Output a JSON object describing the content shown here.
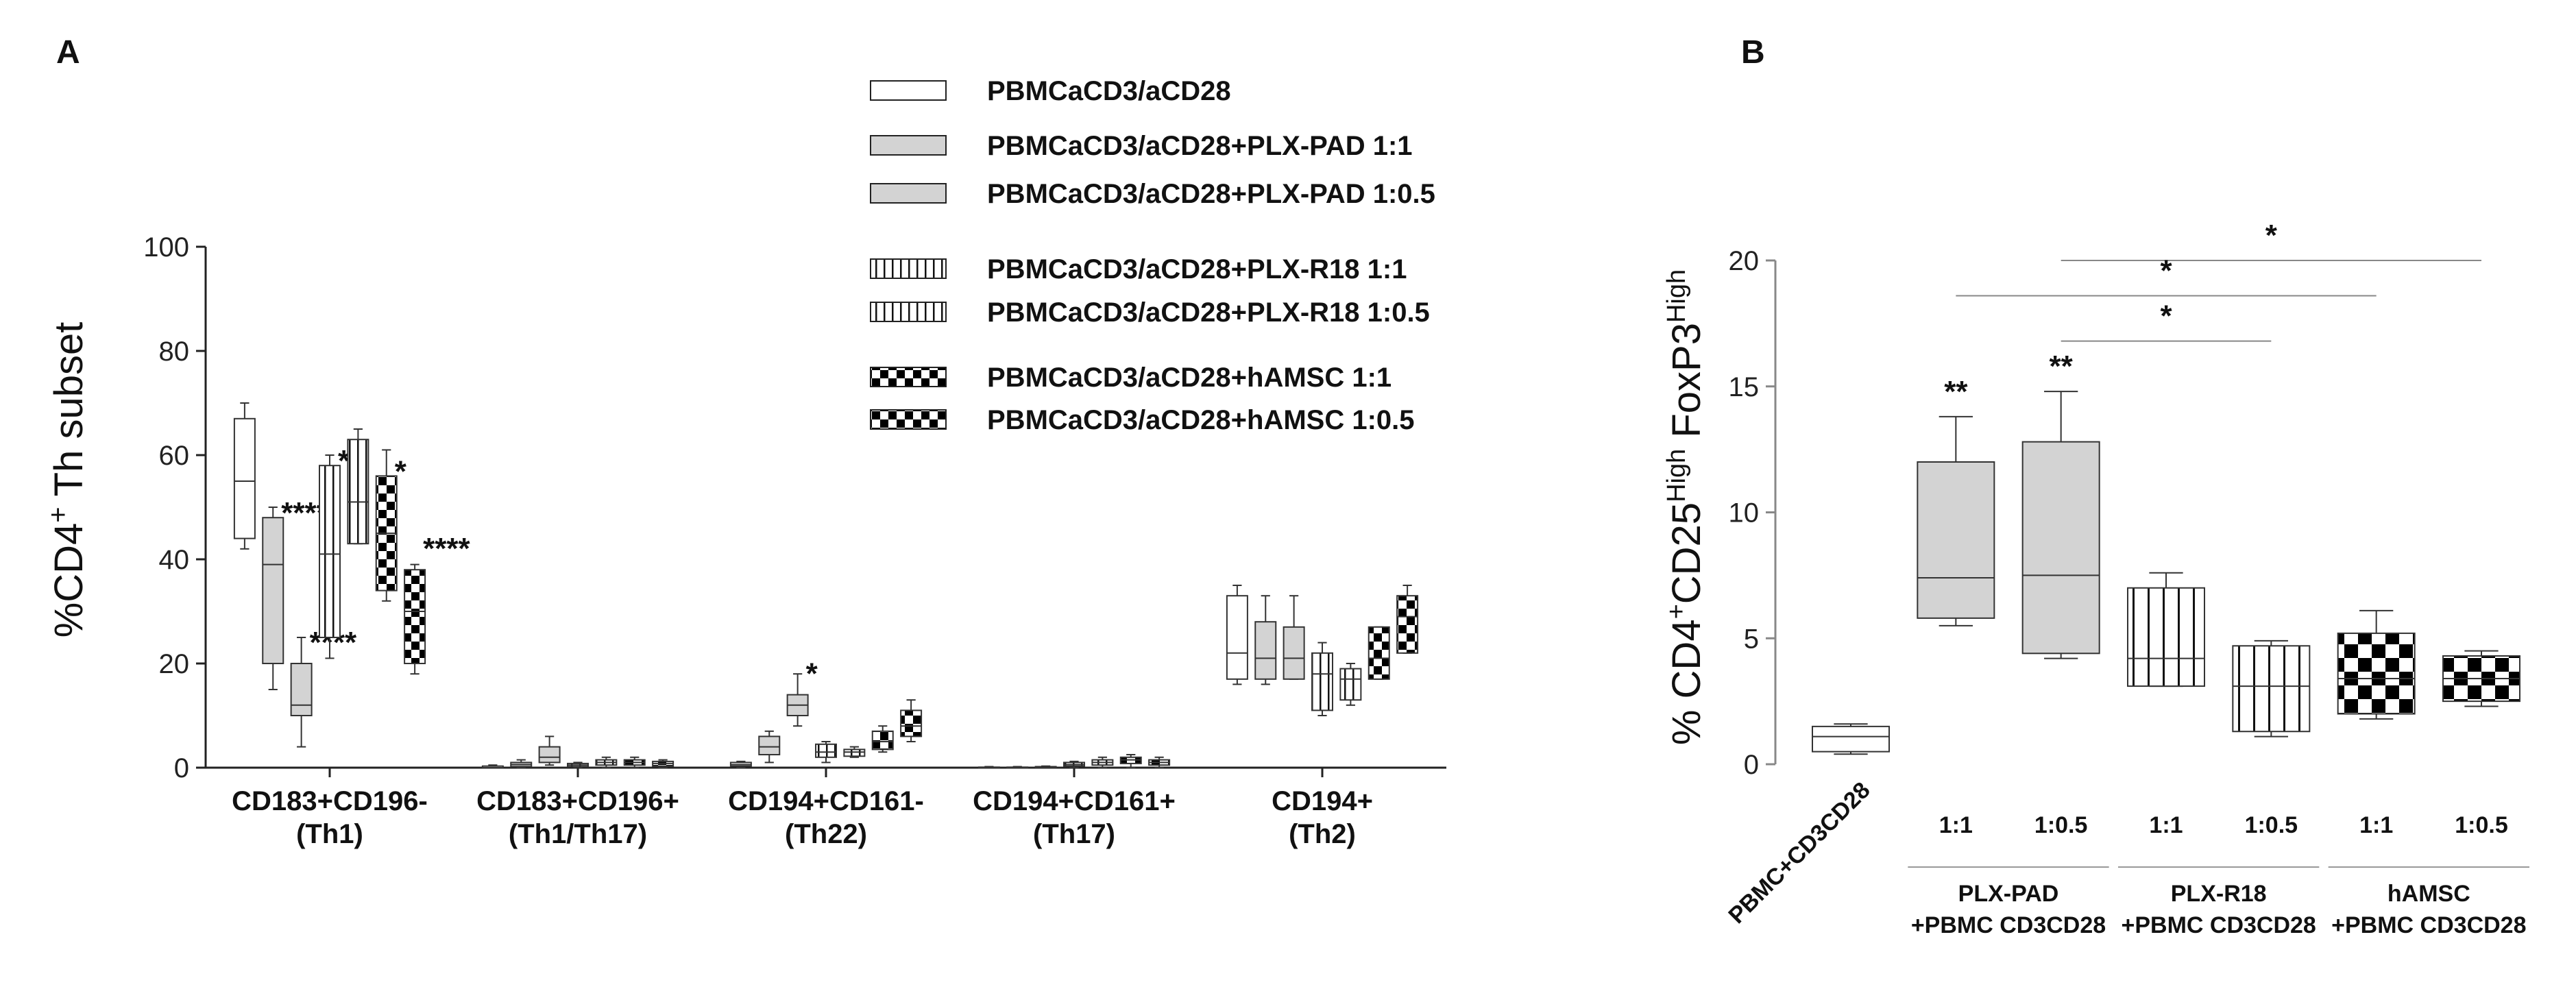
{
  "panels": {
    "a": "A",
    "b": "B"
  },
  "legend": [
    {
      "label": "PBMCaCD3/aCD28",
      "style": "white"
    },
    {
      "label": "PBMCaCD3/aCD28+PLX-PAD 1:1",
      "style": "gray"
    },
    {
      "label": "PBMCaCD3/aCD28+PLX-PAD 1:0.5",
      "style": "gray"
    },
    {
      "label": "PBMCaCD3/aCD28+PLX-R18 1:1",
      "style": "stripes"
    },
    {
      "label": "PBMCaCD3/aCD28+PLX-R18 1:0.5",
      "style": "stripes"
    },
    {
      "label": "PBMCaCD3/aCD28+hAMSC 1:1",
      "style": "checker"
    },
    {
      "label": "PBMCaCD3/aCD28+hAMSC 1:0.5",
      "style": "checker"
    }
  ],
  "colors": {
    "gray": "#d3d3d3",
    "line": "#333333",
    "axis": "#222222",
    "checker_dark": "#000000"
  },
  "chart_data": [
    {
      "type": "box",
      "panel": "A",
      "ylabel_main": "%CD4",
      "ylabel_sup": "+",
      "ylabel_rest": " Th subset",
      "ylim": [
        0,
        100
      ],
      "yticks": [
        0,
        20,
        40,
        60,
        80,
        100
      ],
      "groups": [
        {
          "label1": "CD183+CD196-",
          "label2": "(Th1)"
        },
        {
          "label1": "CD183+CD196+",
          "label2": "(Th1/Th17)"
        },
        {
          "label1": "CD194+CD161-",
          "label2": "(Th22)"
        },
        {
          "label1": "CD194+CD161+",
          "label2": "(Th17)"
        },
        {
          "label1": "CD194+",
          "label2": "(Th2)"
        }
      ],
      "boxes": [
        {
          "group": 0,
          "style": "white",
          "min": 42,
          "q1": 44,
          "median": 55,
          "q3": 67,
          "max": 70,
          "sig": ""
        },
        {
          "group": 0,
          "style": "gray",
          "min": 15,
          "q1": 20,
          "median": 39,
          "q3": 48,
          "max": 50,
          "sig": "****"
        },
        {
          "group": 0,
          "style": "gray",
          "min": 4,
          "q1": 10,
          "median": 12,
          "q3": 20,
          "max": 25,
          "sig": "****"
        },
        {
          "group": 0,
          "style": "stripes",
          "min": 21,
          "q1": 25,
          "median": 41,
          "q3": 58,
          "max": 60,
          "sig": "**"
        },
        {
          "group": 0,
          "style": "stripes",
          "min": 43,
          "q1": 43,
          "median": 51,
          "q3": 63,
          "max": 65,
          "sig": ""
        },
        {
          "group": 0,
          "style": "checker",
          "min": 32,
          "q1": 34,
          "median": 45,
          "q3": 56,
          "max": 61,
          "sig": "*"
        },
        {
          "group": 0,
          "style": "checker",
          "min": 18,
          "q1": 20,
          "median": 30,
          "q3": 38,
          "max": 39,
          "sig": "****"
        },
        {
          "group": 1,
          "style": "white",
          "min": 0,
          "q1": 0,
          "median": 0,
          "q3": 0.3,
          "max": 0.5,
          "sig": ""
        },
        {
          "group": 1,
          "style": "gray",
          "min": 0,
          "q1": 0.2,
          "median": 0.6,
          "q3": 1,
          "max": 1.5,
          "sig": ""
        },
        {
          "group": 1,
          "style": "gray",
          "min": 0.5,
          "q1": 1,
          "median": 2,
          "q3": 4,
          "max": 6,
          "sig": ""
        },
        {
          "group": 1,
          "style": "stripes",
          "min": 0,
          "q1": 0.2,
          "median": 0.5,
          "q3": 0.8,
          "max": 1,
          "sig": ""
        },
        {
          "group": 1,
          "style": "stripes",
          "min": 0,
          "q1": 0.5,
          "median": 1,
          "q3": 1.5,
          "max": 2,
          "sig": ""
        },
        {
          "group": 1,
          "style": "checker",
          "min": 0,
          "q1": 0.5,
          "median": 1,
          "q3": 1.5,
          "max": 2,
          "sig": ""
        },
        {
          "group": 1,
          "style": "checker",
          "min": 0,
          "q1": 0.3,
          "median": 0.8,
          "q3": 1.2,
          "max": 1.5,
          "sig": ""
        },
        {
          "group": 2,
          "style": "white",
          "min": 0,
          "q1": 0.3,
          "median": 0.6,
          "q3": 1,
          "max": 1.2,
          "sig": ""
        },
        {
          "group": 2,
          "style": "gray",
          "min": 1,
          "q1": 2.5,
          "median": 4,
          "q3": 6,
          "max": 7,
          "sig": ""
        },
        {
          "group": 2,
          "style": "gray",
          "min": 8,
          "q1": 10,
          "median": 12,
          "q3": 14,
          "max": 18,
          "sig": "*"
        },
        {
          "group": 2,
          "style": "stripes",
          "min": 1,
          "q1": 2,
          "median": 3,
          "q3": 4.5,
          "max": 5,
          "sig": ""
        },
        {
          "group": 2,
          "style": "stripes",
          "min": 2,
          "q1": 2.2,
          "median": 3,
          "q3": 3.5,
          "max": 4,
          "sig": ""
        },
        {
          "group": 2,
          "style": "checker",
          "min": 3,
          "q1": 3.5,
          "median": 5,
          "q3": 7,
          "max": 8,
          "sig": ""
        },
        {
          "group": 2,
          "style": "checker",
          "min": 5,
          "q1": 6,
          "median": 8,
          "q3": 11,
          "max": 13,
          "sig": ""
        },
        {
          "group": 3,
          "style": "white",
          "min": 0,
          "q1": 0,
          "median": 0,
          "q3": 0.1,
          "max": 0.2,
          "sig": ""
        },
        {
          "group": 3,
          "style": "gray",
          "min": 0,
          "q1": 0,
          "median": 0,
          "q3": 0.1,
          "max": 0.2,
          "sig": ""
        },
        {
          "group": 3,
          "style": "gray",
          "min": 0,
          "q1": 0,
          "median": 0.1,
          "q3": 0.2,
          "max": 0.3,
          "sig": ""
        },
        {
          "group": 3,
          "style": "stripes",
          "min": 0,
          "q1": 0.3,
          "median": 0.6,
          "q3": 1,
          "max": 1.2,
          "sig": ""
        },
        {
          "group": 3,
          "style": "stripes",
          "min": 0,
          "q1": 0.5,
          "median": 1,
          "q3": 1.5,
          "max": 2,
          "sig": ""
        },
        {
          "group": 3,
          "style": "checker",
          "min": 0,
          "q1": 0.8,
          "median": 1.5,
          "q3": 2,
          "max": 2.5,
          "sig": ""
        },
        {
          "group": 3,
          "style": "checker",
          "min": 0,
          "q1": 0.5,
          "median": 1,
          "q3": 1.5,
          "max": 2,
          "sig": ""
        },
        {
          "group": 4,
          "style": "white",
          "min": 16,
          "q1": 17,
          "median": 22,
          "q3": 33,
          "max": 35,
          "sig": ""
        },
        {
          "group": 4,
          "style": "gray",
          "min": 16,
          "q1": 17,
          "median": 21,
          "q3": 28,
          "max": 33,
          "sig": ""
        },
        {
          "group": 4,
          "style": "gray",
          "min": 17,
          "q1": 17,
          "median": 21,
          "q3": 27,
          "max": 33,
          "sig": ""
        },
        {
          "group": 4,
          "style": "stripes",
          "min": 10,
          "q1": 11,
          "median": 18,
          "q3": 22,
          "max": 24,
          "sig": ""
        },
        {
          "group": 4,
          "style": "stripes",
          "min": 12,
          "q1": 13,
          "median": 17,
          "q3": 19,
          "max": 20,
          "sig": ""
        },
        {
          "group": 4,
          "style": "checker",
          "min": 17,
          "q1": 17,
          "median": 21,
          "q3": 27,
          "max": 27,
          "sig": ""
        },
        {
          "group": 4,
          "style": "checker",
          "min": 22,
          "q1": 22,
          "median": 29,
          "q3": 33,
          "max": 35,
          "sig": ""
        }
      ]
    },
    {
      "type": "box",
      "panel": "B",
      "ylabel_pre": "% CD4",
      "ylabel_sup1": "+",
      "ylabel_mid1": "CD25",
      "ylabel_sup2": "High",
      "ylabel_mid2": " FoxP3",
      "ylabel_sup3": "High",
      "ylim": [
        0,
        20
      ],
      "yticks": [
        0,
        5,
        10,
        15,
        20
      ],
      "first_label": "PBMC+CD3CD28",
      "sub_ticks": [
        "1:1",
        "1:0.5",
        "1:1",
        "1:0.5",
        "1:1",
        "1:0.5"
      ],
      "group_labels": [
        {
          "line1": "PLX-PAD",
          "line2": "+PBMC CD3CD28"
        },
        {
          "line1": "PLX-R18",
          "line2": "+PBMC CD3CD28"
        },
        {
          "line1": "hAMSC",
          "line2": "+PBMC CD3CD28"
        }
      ],
      "boxes": [
        {
          "style": "white",
          "min": 0.4,
          "q1": 0.5,
          "median": 1.1,
          "q3": 1.5,
          "max": 1.6,
          "sig": ""
        },
        {
          "style": "gray",
          "min": 5.5,
          "q1": 5.8,
          "median": 7.4,
          "q3": 12,
          "max": 13.8,
          "sig": "**"
        },
        {
          "style": "gray",
          "min": 4.2,
          "q1": 4.4,
          "median": 7.5,
          "q3": 12.8,
          "max": 14.8,
          "sig": "**"
        },
        {
          "style": "stripes",
          "min": 3.1,
          "q1": 3.1,
          "median": 4.2,
          "q3": 7,
          "max": 7.6,
          "sig": ""
        },
        {
          "style": "stripes",
          "min": 1.1,
          "q1": 1.3,
          "median": 3.1,
          "q3": 4.7,
          "max": 4.9,
          "sig": ""
        },
        {
          "style": "checker",
          "min": 1.8,
          "q1": 2,
          "median": 3.4,
          "q3": 5.2,
          "max": 6.1,
          "sig": ""
        },
        {
          "style": "checker",
          "min": 2.3,
          "q1": 2.5,
          "median": 3.4,
          "q3": 4.3,
          "max": 4.5,
          "sig": ""
        }
      ],
      "brackets": [
        {
          "from": 2,
          "to": 6,
          "y": 20,
          "label": "*"
        },
        {
          "from": 1,
          "to": 5,
          "y": 18.6,
          "label": "*"
        },
        {
          "from": 2,
          "to": 4,
          "y": 16.8,
          "label": "*"
        }
      ]
    }
  ]
}
